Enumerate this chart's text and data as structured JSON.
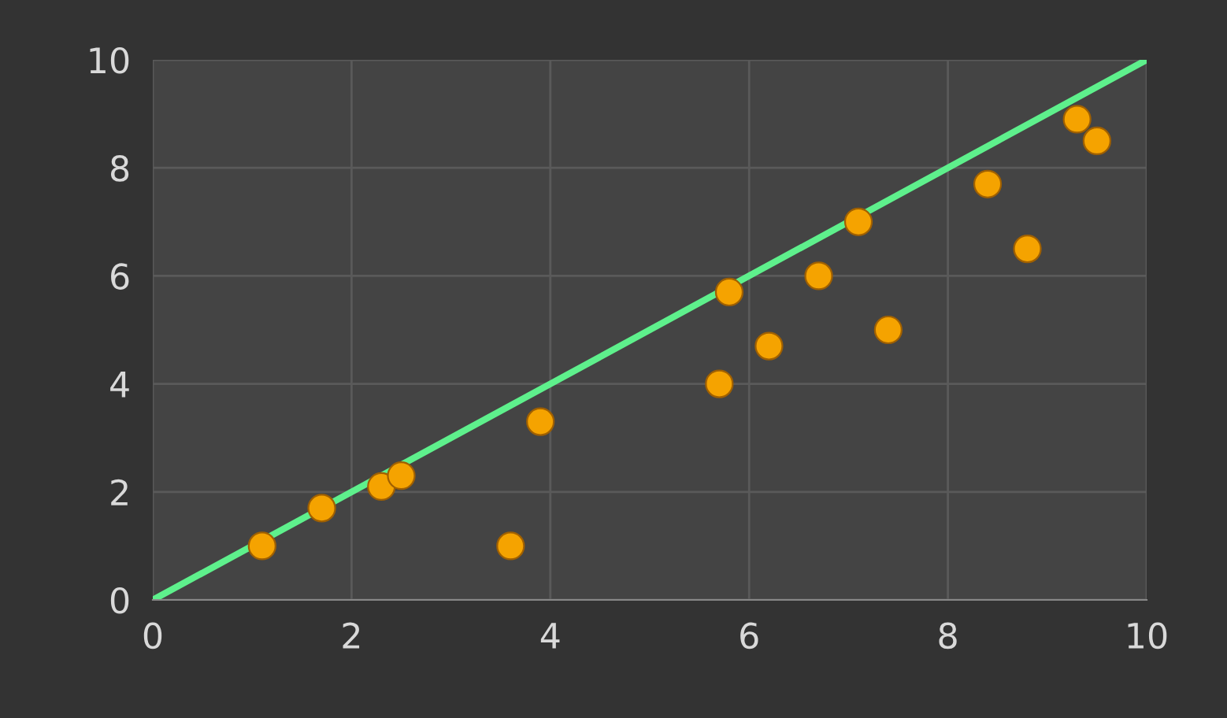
{
  "chart_data": {
    "type": "scatter",
    "xlim": [
      0,
      10
    ],
    "ylim": [
      0,
      10
    ],
    "xticks": [
      0,
      2,
      4,
      6,
      8,
      10
    ],
    "yticks": [
      0,
      2,
      4,
      6,
      8,
      10
    ],
    "grid": true,
    "marker": "circle",
    "series": [
      {
        "color": "#f5a300",
        "x": [
          1.1,
          1.7,
          2.3,
          2.5,
          3.6,
          3.9,
          5.7,
          5.8,
          6.2,
          6.7,
          7.1,
          7.4,
          8.4,
          8.8,
          9.3,
          9.5
        ],
        "values": [
          1.0,
          1.7,
          2.1,
          2.3,
          1.0,
          3.3,
          4.0,
          5.7,
          4.7,
          6.0,
          7.0,
          5.0,
          7.7,
          6.5,
          8.9,
          8.5
        ]
      },
      {
        "type": "line",
        "color": "#5ef08c",
        "marker": "none",
        "x": [
          0,
          10
        ],
        "values": [
          0,
          10
        ]
      }
    ]
  }
}
